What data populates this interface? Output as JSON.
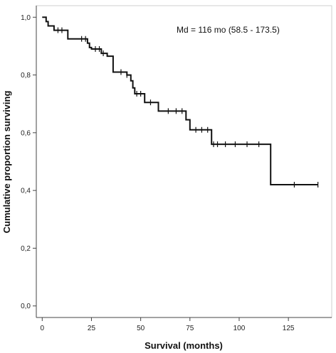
{
  "chart_data": {
    "type": "line",
    "subtype": "kaplan-meier",
    "title": "",
    "xlabel": "Survival (months)",
    "ylabel": "Cumulative proportion surviving",
    "annotation": "Md = 116 mo (58.5 - 173.5)",
    "xlim": [
      -3,
      147
    ],
    "ylim": [
      -0.04,
      1.04
    ],
    "x_ticks": [
      0,
      25,
      50,
      75,
      100,
      125
    ],
    "y_ticks": [
      0.0,
      0.2,
      0.4,
      0.6,
      0.8,
      1.0
    ],
    "x_tick_labels": [
      "0",
      "25",
      "50",
      "75",
      "100",
      "125"
    ],
    "y_tick_labels": [
      "0,0",
      "0,2",
      "0,4",
      "0,6",
      "0,8",
      "1,0"
    ],
    "grid": false,
    "line_color": "#111111",
    "series": [
      {
        "steps": [
          [
            0,
            1.0
          ],
          [
            2,
            0.985
          ],
          [
            3,
            0.97
          ],
          [
            6,
            0.955
          ],
          [
            13,
            0.925
          ],
          [
            23,
            0.91
          ],
          [
            24,
            0.895
          ],
          [
            25,
            0.89
          ],
          [
            30,
            0.875
          ],
          [
            33,
            0.865
          ],
          [
            36,
            0.81
          ],
          [
            43,
            0.8
          ],
          [
            45,
            0.78
          ],
          [
            46,
            0.755
          ],
          [
            47,
            0.735
          ],
          [
            52,
            0.705
          ],
          [
            59,
            0.675
          ],
          [
            73,
            0.645
          ],
          [
            75,
            0.61
          ],
          [
            86,
            0.56
          ],
          [
            116,
            0.42
          ],
          [
            140,
            0.42
          ]
        ],
        "censored": [
          [
            8,
            0.955
          ],
          [
            10,
            0.955
          ],
          [
            20,
            0.925
          ],
          [
            22,
            0.925
          ],
          [
            27,
            0.89
          ],
          [
            29,
            0.89
          ],
          [
            31,
            0.875
          ],
          [
            40,
            0.81
          ],
          [
            43,
            0.8
          ],
          [
            48,
            0.735
          ],
          [
            50,
            0.735
          ],
          [
            55,
            0.705
          ],
          [
            64,
            0.675
          ],
          [
            68,
            0.675
          ],
          [
            71,
            0.675
          ],
          [
            78,
            0.61
          ],
          [
            81,
            0.61
          ],
          [
            84,
            0.61
          ],
          [
            87,
            0.56
          ],
          [
            89,
            0.56
          ],
          [
            93,
            0.56
          ],
          [
            98,
            0.56
          ],
          [
            104,
            0.56
          ],
          [
            110,
            0.56
          ],
          [
            128,
            0.42
          ],
          [
            140,
            0.42
          ]
        ]
      }
    ]
  }
}
